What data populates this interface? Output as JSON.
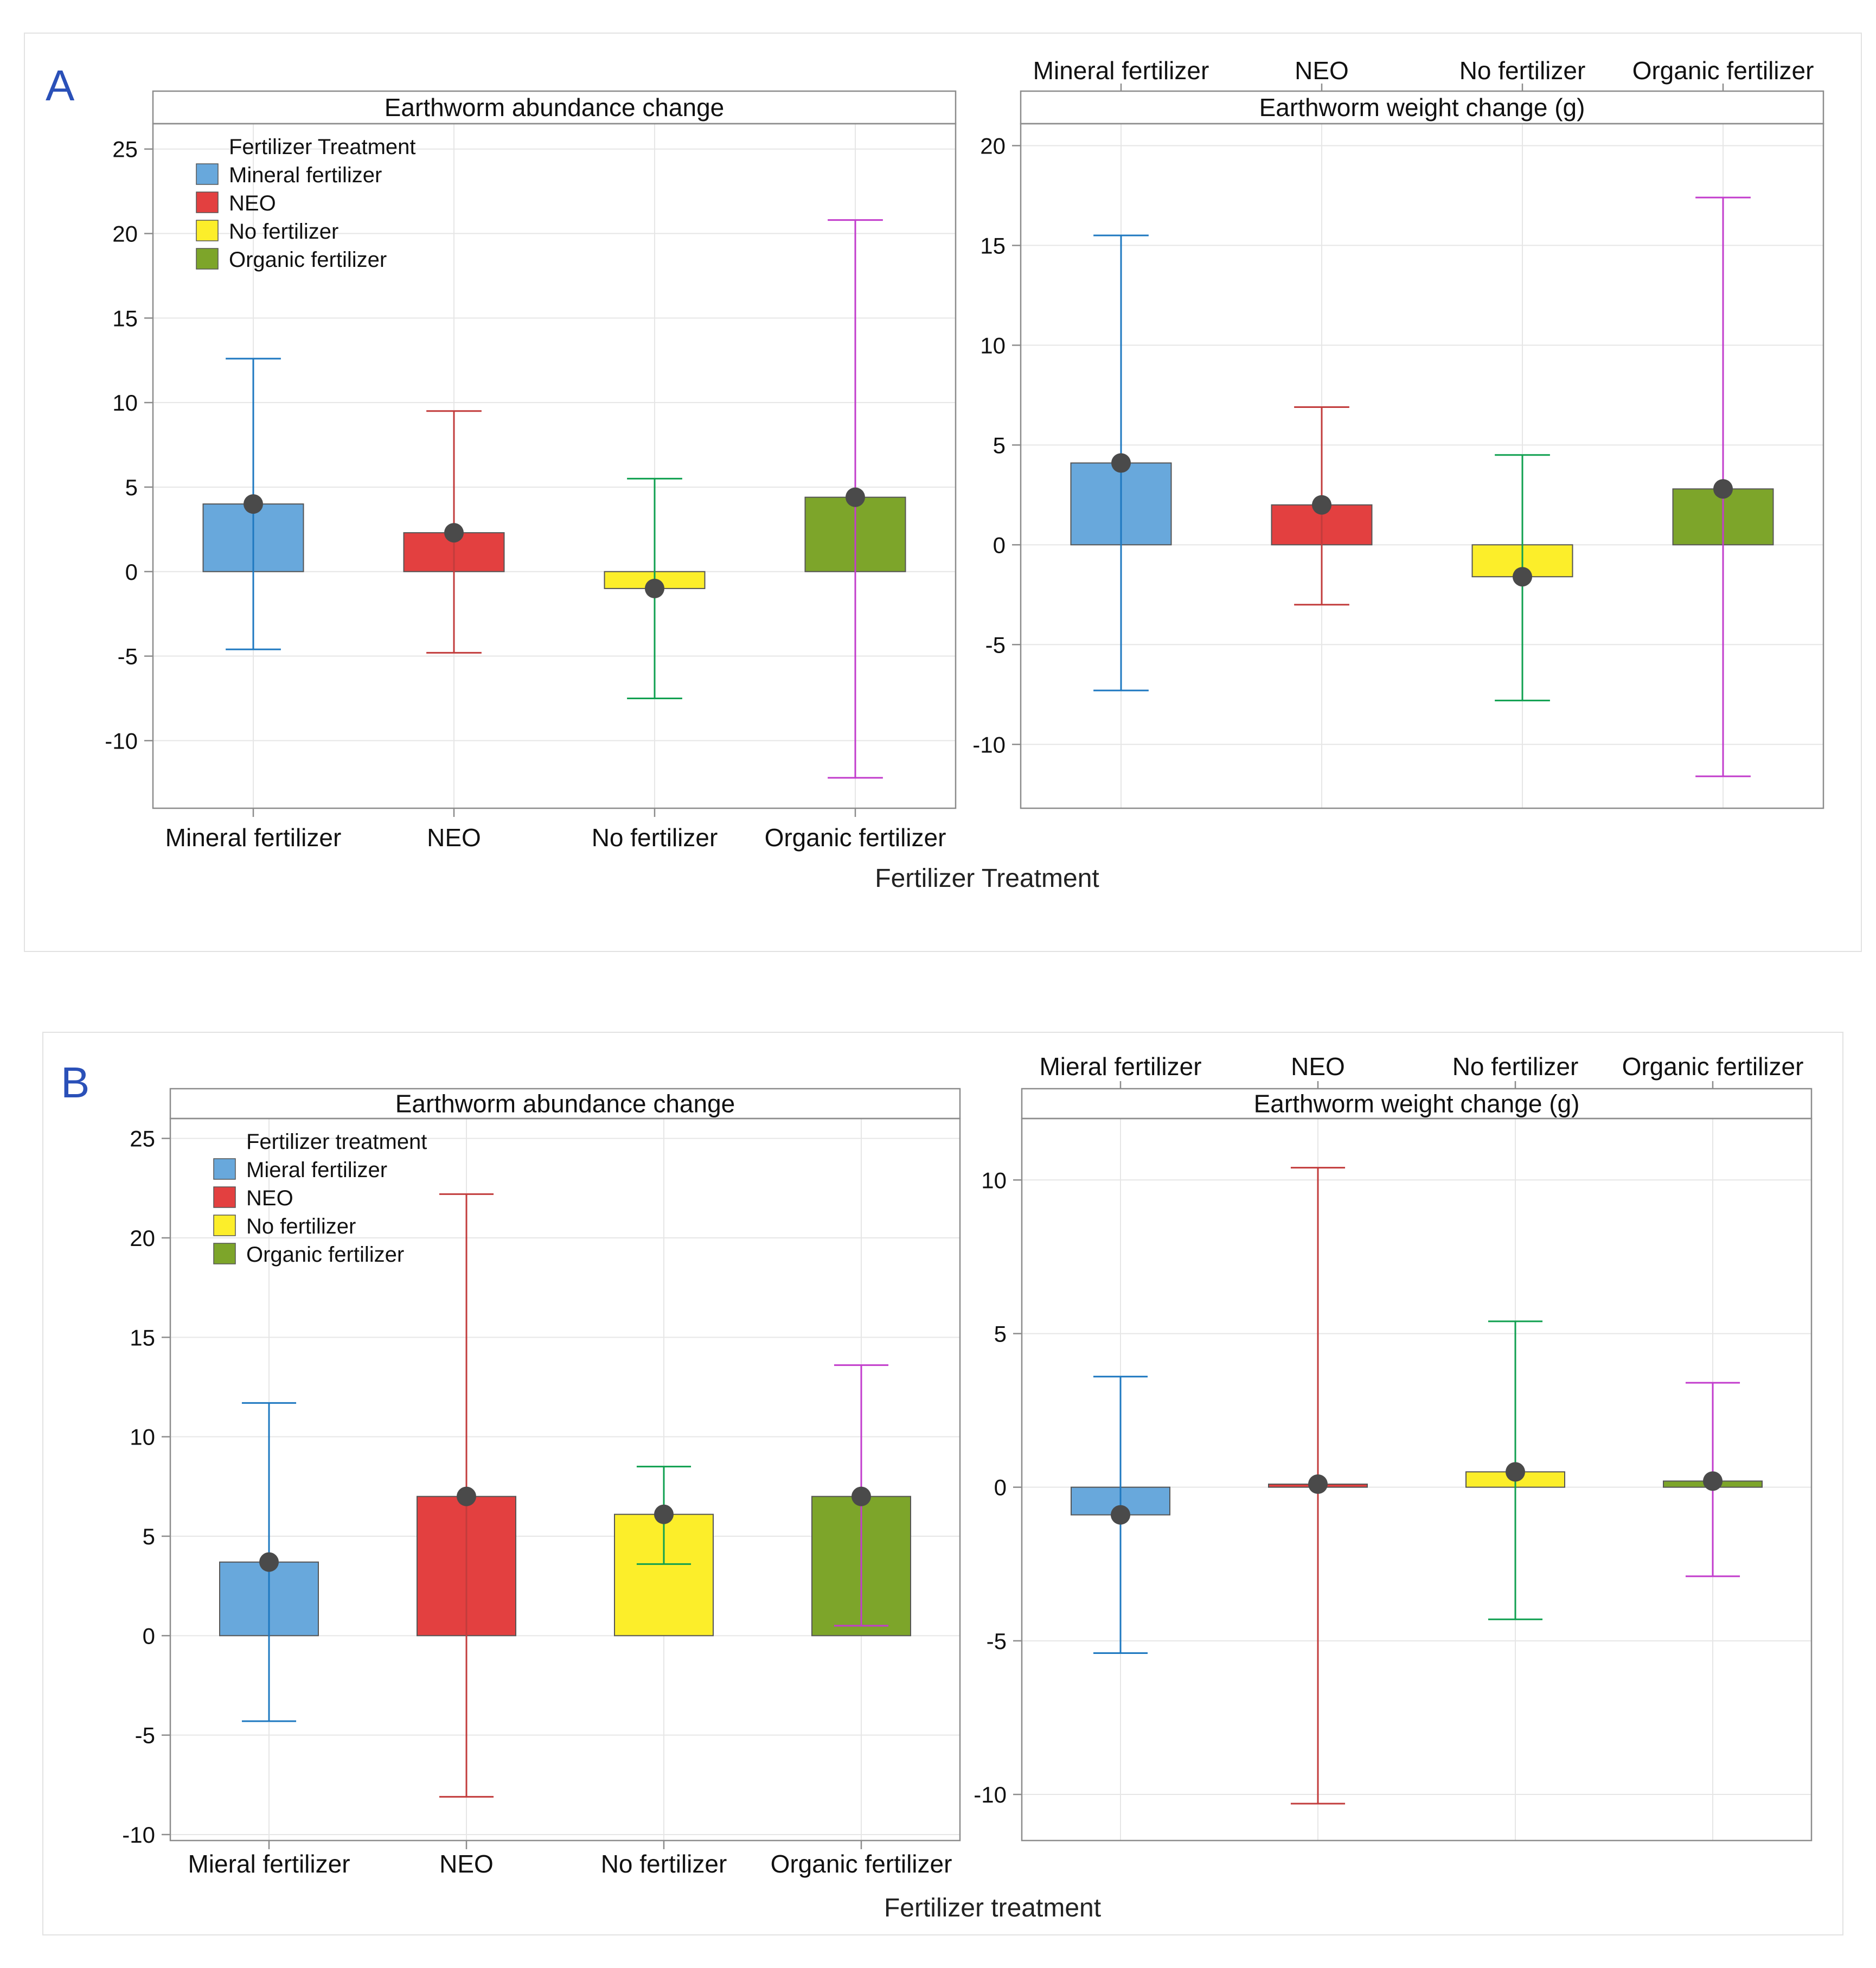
{
  "panels": [
    {
      "letter": "A",
      "xaxis_title": "Fertilizer Treatment",
      "legend_title": "Fertilizer Treatment",
      "legend_items": [
        "Mineral fertilizer",
        "NEO",
        "No fertilizer",
        "Organic fertilizer"
      ]
    },
    {
      "letter": "B",
      "xaxis_title": "Fertilizer treatment",
      "legend_title": "Fertilizer treatment",
      "legend_items": [
        "Mieral fertilizer",
        "NEO",
        "No fertilizer",
        "Organic fertilizer"
      ]
    }
  ],
  "colors": {
    "fills": [
      "#68a8dc",
      "#e34040",
      "#fcee2a",
      "#7da52a"
    ],
    "errors": [
      "#1e78c0",
      "#c23c3c",
      "#10a050",
      "#c23ccc"
    ],
    "dot": "#4a4a4a",
    "grid": "#e6e6e6",
    "axis": "#8c8c8c"
  },
  "chart_data": [
    {
      "id": "A-abundance",
      "type": "bar",
      "title": "Earthworm abundance change",
      "categories": [
        "Mineral fertilizer",
        "NEO",
        "No fertilizer",
        "Organic fertilizer"
      ],
      "values": [
        4.0,
        2.3,
        -1.0,
        4.4
      ],
      "error_high": [
        12.6,
        9.5,
        5.5,
        20.8
      ],
      "error_low": [
        -4.6,
        -4.8,
        -7.5,
        -12.2
      ],
      "ylim": [
        -14,
        26.5
      ],
      "yticks": [
        25,
        20,
        15,
        10,
        5,
        0,
        -5,
        -10
      ],
      "xlabel": "Fertilizer Treatment",
      "ylabel": ""
    },
    {
      "id": "A-weight",
      "type": "bar",
      "title": "Earthworm weight change (g)",
      "categories": [
        "Mineral fertilizer",
        "NEO",
        "No fertilizer",
        "Organic fertilizer"
      ],
      "values": [
        4.1,
        2.0,
        -1.6,
        2.8
      ],
      "error_high": [
        15.5,
        6.9,
        4.5,
        17.4
      ],
      "error_low": [
        -7.3,
        -3.0,
        -7.8,
        -11.6
      ],
      "ylim": [
        -13.2,
        21.1
      ],
      "yticks": [
        20,
        15,
        10,
        5,
        0,
        -5,
        -10
      ],
      "xlabel": "Fertilizer Treatment",
      "ylabel": ""
    },
    {
      "id": "B-abundance",
      "type": "bar",
      "title": "Earthworm abundance change",
      "categories": [
        "Mieral fertilizer",
        "NEO",
        "No fertilizer",
        "Organic fertilizer"
      ],
      "values": [
        3.7,
        7.0,
        6.1,
        7.0
      ],
      "error_high": [
        11.7,
        22.2,
        8.5,
        13.6
      ],
      "error_low": [
        -4.3,
        -8.1,
        3.6,
        0.5
      ],
      "ylim": [
        -10.3,
        26.0
      ],
      "yticks": [
        25,
        20,
        15,
        10,
        5,
        0,
        -5,
        -10
      ],
      "xlabel": "Fertilizer treatment",
      "ylabel": ""
    },
    {
      "id": "B-weight",
      "type": "bar",
      "title": "Earthworm weight change (g)",
      "categories": [
        "Mieral fertilizer",
        "NEO",
        "No fertilizer",
        "Organic fertilizer"
      ],
      "values": [
        -0.9,
        0.1,
        0.5,
        0.2
      ],
      "error_high": [
        3.6,
        10.4,
        5.4,
        3.4
      ],
      "error_low": [
        -5.4,
        -10.3,
        -4.3,
        -2.9
      ],
      "ylim": [
        -11.5,
        12.0
      ],
      "yticks": [
        10,
        5,
        0,
        -5,
        -10
      ],
      "xlabel": "Fertilizer treatment",
      "ylabel": ""
    }
  ]
}
